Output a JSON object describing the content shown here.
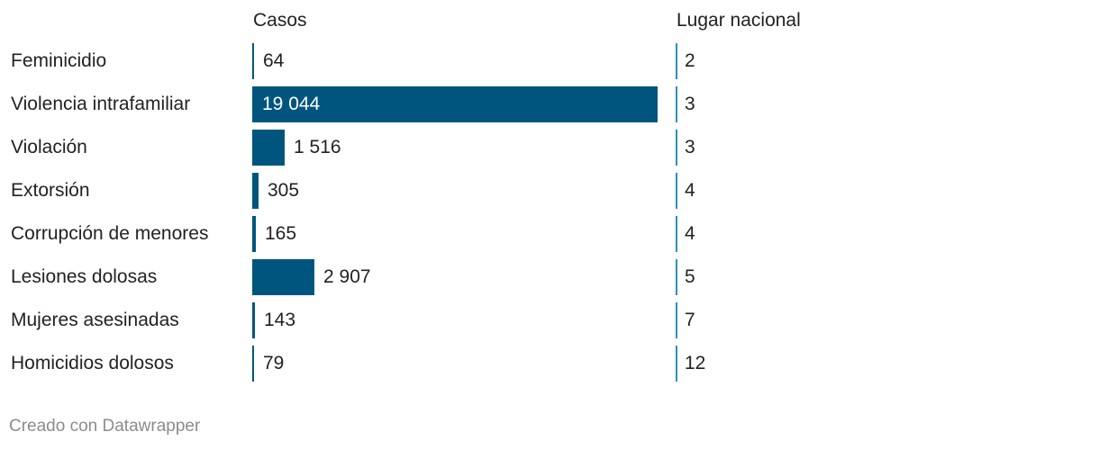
{
  "chart_data": {
    "type": "table",
    "columns": [
      "Casos",
      "Lugar nacional"
    ],
    "rows": [
      {
        "label": "Feminicidio",
        "casos": 64,
        "casos_text": "64",
        "lugar": 2,
        "lugar_text": "2"
      },
      {
        "label": "Violencia intrafamiliar",
        "casos": 19044,
        "casos_text": "19 044",
        "lugar": 3,
        "lugar_text": "3"
      },
      {
        "label": "Violación",
        "casos": 1516,
        "casos_text": "1 516",
        "lugar": 3,
        "lugar_text": "3"
      },
      {
        "label": "Extorsión",
        "casos": 305,
        "casos_text": "305",
        "lugar": 4,
        "lugar_text": "4"
      },
      {
        "label": "Corrupción de menores",
        "casos": 165,
        "casos_text": "165",
        "lugar": 4,
        "lugar_text": "4"
      },
      {
        "label": "Lesiones dolosas",
        "casos": 2907,
        "casos_text": "2 907",
        "lugar": 5,
        "lugar_text": "5"
      },
      {
        "label": "Mujeres asesinadas",
        "casos": 143,
        "casos_text": "143",
        "lugar": 7,
        "lugar_text": "7"
      },
      {
        "label": "Homicidios dolosos",
        "casos": 79,
        "casos_text": "79",
        "lugar": 12,
        "lugar_text": "12"
      }
    ],
    "casos_max": 19044,
    "lugar_max": 32
  },
  "colors": {
    "bar": "#00557f",
    "rank_bar": "#2c8fbd",
    "text": "#222222",
    "footer": "#8c8c8c"
  },
  "headers": {
    "casos": "Casos",
    "lugar": "Lugar nacional"
  },
  "footer": "Creado con Datawrapper"
}
